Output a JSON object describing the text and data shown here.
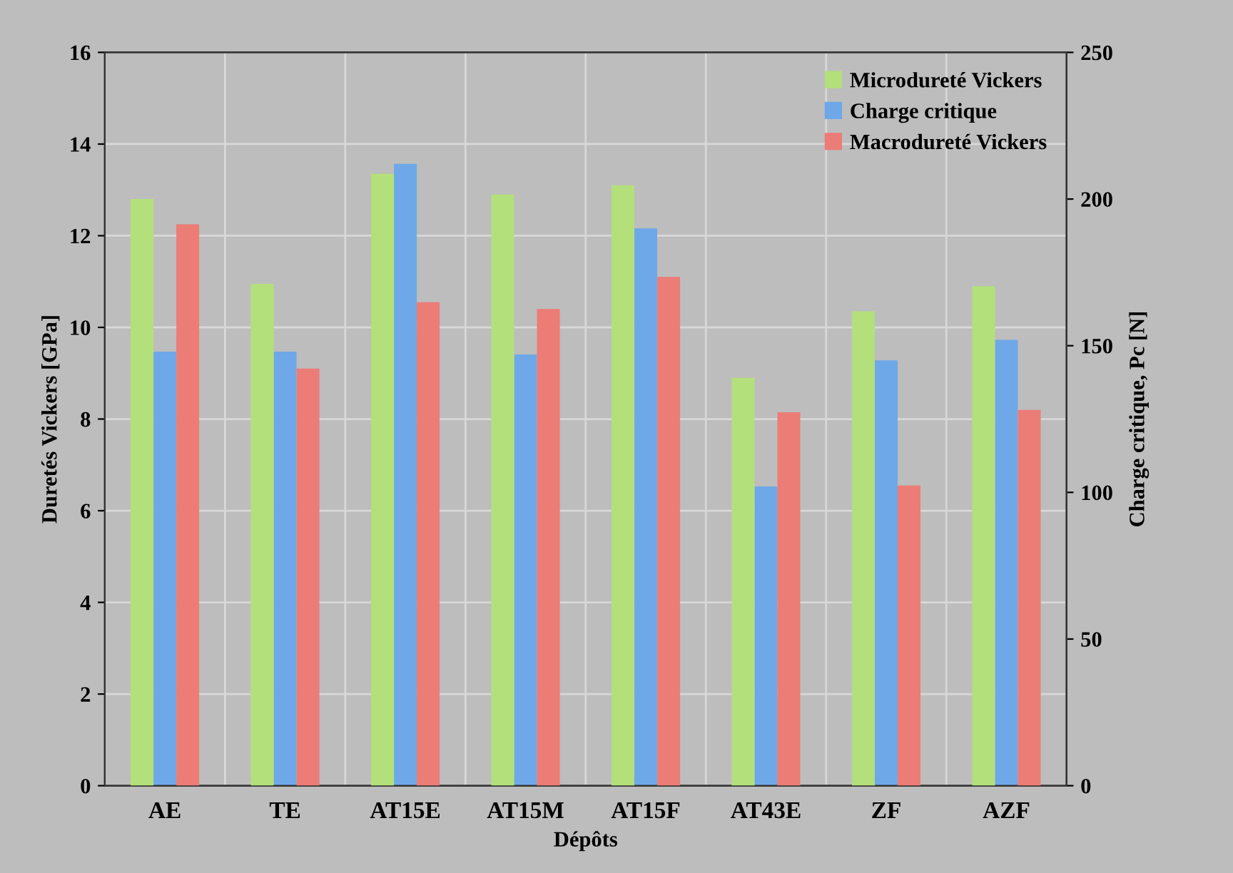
{
  "chart_data": {
    "type": "bar",
    "xlabel": "Dépôts",
    "ylabel": "Duretés Vickers [GPa]",
    "y2label": "Charge critique, Pc [N]",
    "categories": [
      "AE",
      "TE",
      "AT15E",
      "AT15M",
      "AT15F",
      "AT43E",
      "ZF",
      "AZF"
    ],
    "series": [
      {
        "name": "Microdureté Vickers",
        "color": "#b3e07a",
        "values": [
          12.8,
          10.95,
          13.35,
          12.9,
          13.1,
          8.9,
          10.35,
          10.9
        ]
      },
      {
        "name": "Charge critique",
        "color": "#6ea8e8",
        "axis": "y2",
        "values": [
          148,
          148,
          212,
          147,
          190,
          102,
          145,
          152
        ]
      },
      {
        "name": "Macrodureté Vickers",
        "color": "#ec7c76",
        "values": [
          12.25,
          9.1,
          10.55,
          10.4,
          11.1,
          8.15,
          6.55,
          8.2
        ]
      }
    ],
    "ylim": [
      0,
      16
    ],
    "yticks": [
      0,
      2,
      4,
      6,
      8,
      10,
      12,
      14,
      16
    ],
    "y2lim": [
      0,
      250
    ],
    "y2ticks": [
      0,
      50,
      100,
      150,
      200,
      250
    ],
    "grid": true,
    "legend": "top right"
  }
}
